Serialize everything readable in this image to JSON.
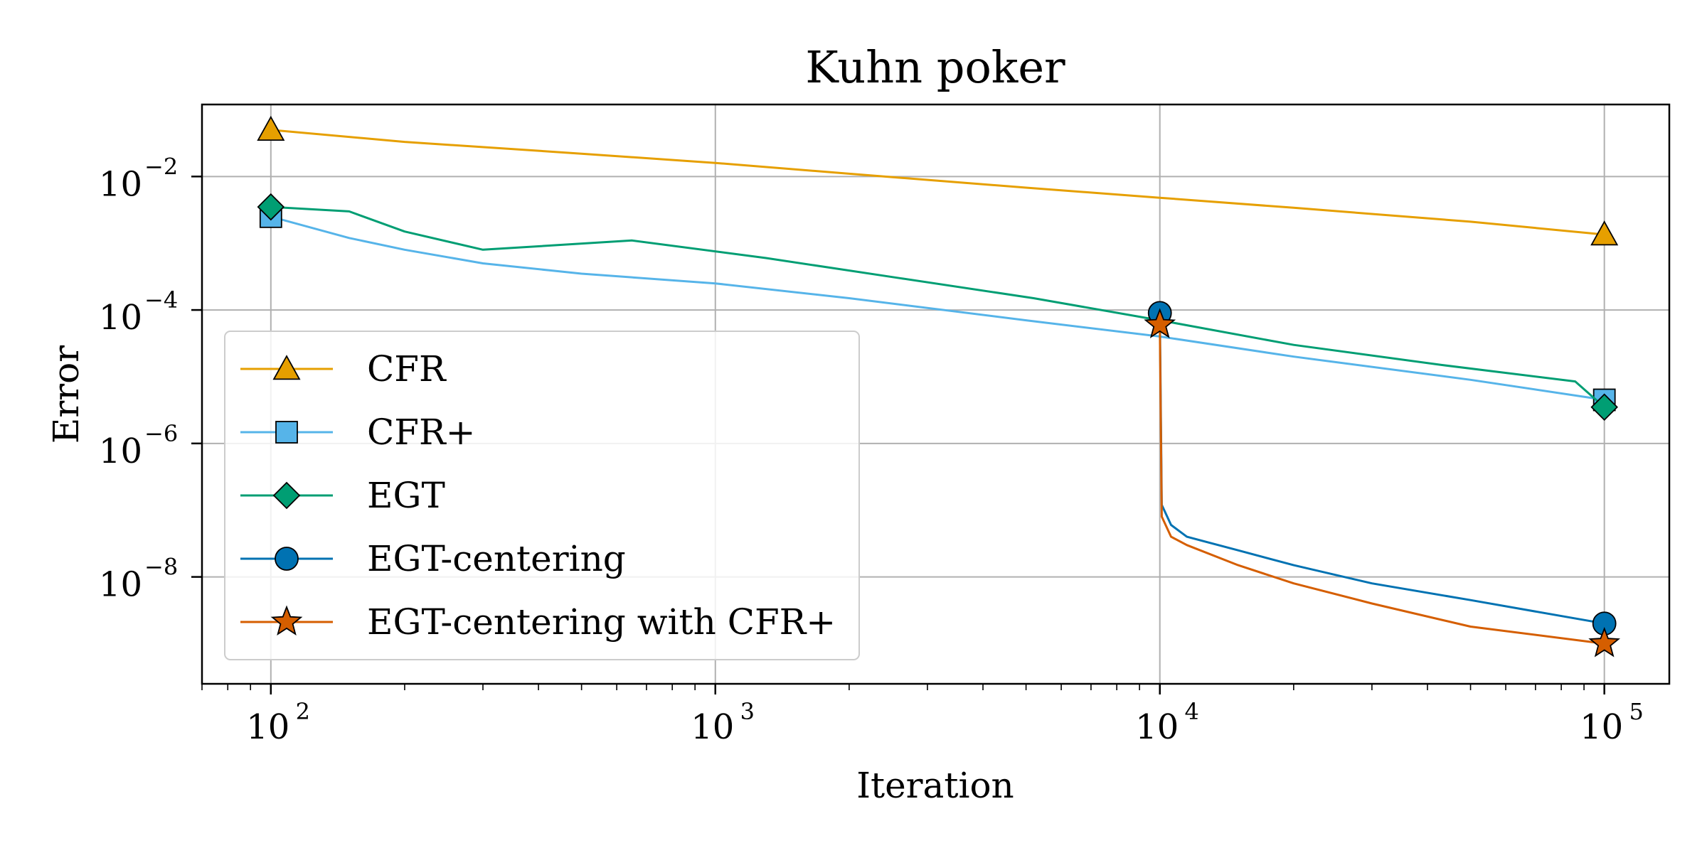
{
  "chart_data": {
    "type": "line",
    "title": "Kuhn poker",
    "xlabel": "Iteration",
    "ylabel": "Error",
    "xscale": "log",
    "yscale": "log",
    "xlim": [
      70,
      140000
    ],
    "ylim": [
      2.5e-10,
      0.12
    ],
    "grid": true,
    "legend_position": "center-left",
    "x_ticks": [
      {
        "base": "10",
        "exp": "2",
        "value": 100
      },
      {
        "base": "10",
        "exp": "3",
        "value": 1000
      },
      {
        "base": "10",
        "exp": "4",
        "value": 10000
      },
      {
        "base": "10",
        "exp": "5",
        "value": 100000
      }
    ],
    "y_ticks": [
      {
        "base": "10",
        "exp": "−2",
        "value": 0.01
      },
      {
        "base": "10",
        "exp": "−4",
        "value": 0.0001
      },
      {
        "base": "10",
        "exp": "−6",
        "value": 1e-06
      },
      {
        "base": "10",
        "exp": "−8",
        "value": 1e-08
      }
    ],
    "series": [
      {
        "name": "CFR",
        "color": "#E69F00",
        "marker": "triangle",
        "x": [
          100,
          200,
          500,
          1000,
          2000,
          5000,
          10000,
          20000,
          50000,
          100000
        ],
        "y": [
          0.05,
          0.033,
          0.022,
          0.016,
          0.011,
          0.0068,
          0.0048,
          0.0034,
          0.0021,
          0.00135
        ]
      },
      {
        "name": "CFR+",
        "color": "#56B4E9",
        "marker": "square",
        "x": [
          100,
          150,
          200,
          300,
          500,
          1000,
          2000,
          5000,
          10000,
          20000,
          50000,
          100000
        ],
        "y": [
          0.0025,
          0.0012,
          0.0008,
          0.0005,
          0.00035,
          0.00025,
          0.00015,
          7e-05,
          4e-05,
          2e-05,
          9e-06,
          4.5e-06
        ]
      },
      {
        "name": "EGT",
        "color": "#009E73",
        "marker": "diamond",
        "x": [
          100,
          150,
          200,
          300,
          650,
          1300,
          2600,
          5200,
          10000,
          20000,
          43000,
          86000,
          100000
        ],
        "y": [
          0.0035,
          0.003,
          0.0015,
          0.0008,
          0.0011,
          0.0006,
          0.0003,
          0.00015,
          7e-05,
          3e-05,
          1.5e-05,
          8.5e-06,
          3.5e-06
        ]
      },
      {
        "name": "EGT-centering",
        "color": "#0072B2",
        "marker": "circle",
        "x": [
          10000,
          10100,
          10600,
          11500,
          15000,
          20000,
          30000,
          50000,
          100000
        ],
        "y": [
          9e-05,
          1.2e-07,
          6e-08,
          4e-08,
          2.5e-08,
          1.5e-08,
          8e-09,
          4.5e-09,
          2e-09
        ]
      },
      {
        "name": "EGT-centering with CFR+",
        "color": "#D55E00",
        "marker": "star",
        "x": [
          10000,
          10100,
          10600,
          11500,
          15000,
          20000,
          30000,
          50000,
          100000
        ],
        "y": [
          6e-05,
          8e-08,
          4e-08,
          3e-08,
          1.5e-08,
          8e-09,
          4e-09,
          1.8e-09,
          1e-09
        ]
      }
    ]
  }
}
